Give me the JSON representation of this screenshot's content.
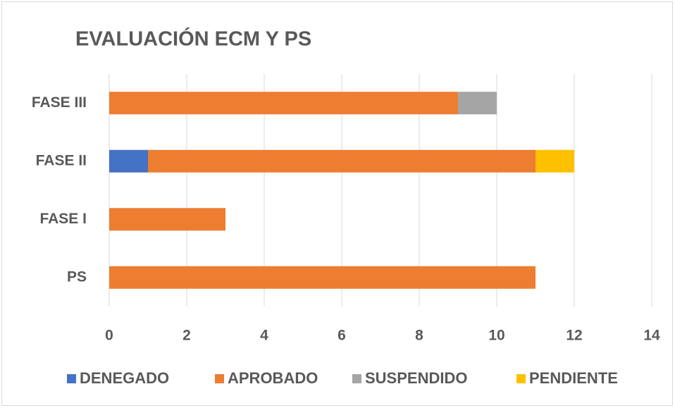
{
  "chart_data": {
    "type": "stacked_barh",
    "title": "EVALUACIÓN ECM Y PS",
    "categories": [
      "FASE III",
      "FASE II",
      "FASE I",
      "PS"
    ],
    "series": [
      {
        "name": "DENEGADO",
        "color": "#4472c4",
        "values": [
          0,
          1,
          0,
          0
        ]
      },
      {
        "name": "APROBADO",
        "color": "#ed7d31",
        "values": [
          9,
          10,
          3,
          11
        ]
      },
      {
        "name": "SUSPENDIDO",
        "color": "#a5a5a5",
        "values": [
          1,
          0,
          0,
          0
        ]
      },
      {
        "name": "PENDIENTE",
        "color": "#ffc000",
        "values": [
          0,
          1,
          0,
          0
        ]
      }
    ],
    "xlim": [
      0,
      14
    ],
    "xticks": [
      0,
      2,
      4,
      6,
      8,
      10,
      12,
      14
    ],
    "grid": true,
    "legend": "bottom"
  }
}
